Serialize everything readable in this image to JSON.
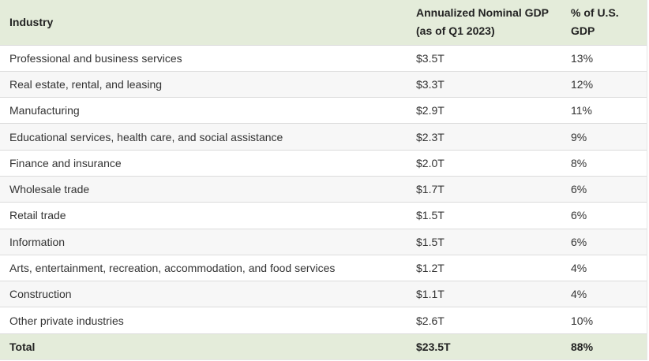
{
  "table": {
    "headers": {
      "industry": "Industry",
      "gdp_line1": "Annualized Nominal GDP",
      "gdp_line2": "(as of Q1 2023)",
      "pct_line1": "% of U.S.",
      "pct_line2": "GDP"
    },
    "rows": [
      {
        "industry": "Professional and business services",
        "gdp": "$3.5T",
        "pct": "13%"
      },
      {
        "industry": "Real estate, rental, and leasing",
        "gdp": "$3.3T",
        "pct": "12%"
      },
      {
        "industry": "Manufacturing",
        "gdp": "$2.9T",
        "pct": "11%"
      },
      {
        "industry": "Educational services, health care, and social assistance",
        "gdp": "$2.3T",
        "pct": "9%"
      },
      {
        "industry": "Finance and insurance",
        "gdp": "$2.0T",
        "pct": "8%"
      },
      {
        "industry": "Wholesale trade",
        "gdp": "$1.7T",
        "pct": "6%"
      },
      {
        "industry": "Retail trade",
        "gdp": "$1.5T",
        "pct": "6%"
      },
      {
        "industry": "Information",
        "gdp": "$1.5T",
        "pct": "6%"
      },
      {
        "industry": "Arts, entertainment, recreation, accommodation, and food services",
        "gdp": "$1.2T",
        "pct": "4%"
      },
      {
        "industry": "Construction",
        "gdp": "$1.1T",
        "pct": "4%"
      },
      {
        "industry": "Other private industries",
        "gdp": "$2.6T",
        "pct": "10%"
      }
    ],
    "total": {
      "label": "Total",
      "gdp": "$23.5T",
      "pct": "88%"
    }
  },
  "colors": {
    "header_bg": "#e4ecda",
    "stripe_bg": "#f7f7f7",
    "row_border": "#dcdcdc"
  }
}
